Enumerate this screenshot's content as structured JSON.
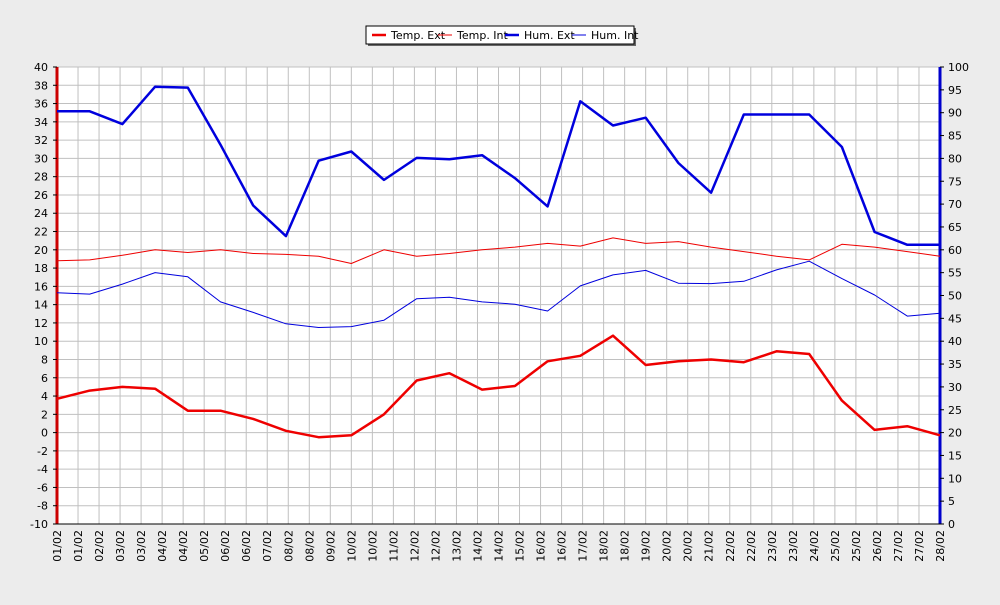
{
  "chart_data": {
    "type": "line",
    "title": "",
    "xlabel": "",
    "categories": [
      "01/02",
      "01/02",
      "02/02",
      "03/02",
      "03/02",
      "04/02",
      "04/02",
      "05/02",
      "06/02",
      "06/02",
      "07/02",
      "08/02",
      "08/02",
      "09/02",
      "10/02",
      "10/02",
      "11/02",
      "12/02",
      "12/02",
      "13/02",
      "14/02",
      "14/02",
      "15/02",
      "16/02",
      "16/02",
      "17/02",
      "18/02",
      "18/02",
      "19/02",
      "20/02",
      "20/02",
      "21/02",
      "22/02",
      "22/02",
      "23/02",
      "23/02",
      "24/02",
      "25/02",
      "25/02",
      "26/02",
      "27/02",
      "27/02",
      "28/02"
    ],
    "left_axis": {
      "min": -10,
      "max": 40,
      "step": 2,
      "color": "#cc0000"
    },
    "right_axis": {
      "min": 0,
      "max": 100,
      "step": 5,
      "color": "#0000cc"
    },
    "grid": true,
    "legend_position": "top-center",
    "series": [
      {
        "name": "Temp. Ext",
        "axis": "left",
        "color": "#ee0000",
        "width": 2.5,
        "x": [
          0,
          1,
          2,
          3,
          4,
          5,
          6,
          7,
          8,
          9,
          10,
          11,
          12,
          13,
          14,
          15,
          16,
          17,
          18,
          19,
          20,
          21,
          22,
          23,
          24,
          25,
          26,
          27
        ],
        "values": [
          3.7,
          4.6,
          5.0,
          4.8,
          2.4,
          2.4,
          1.5,
          0.2,
          -0.5,
          -0.3,
          2.0,
          5.7,
          6.5,
          4.7,
          5.1,
          7.8,
          8.4,
          10.6,
          7.4,
          7.8,
          8.0,
          7.7,
          8.9,
          8.6,
          3.5,
          0.3,
          0.7,
          -0.3
        ]
      },
      {
        "name": "Temp. Int",
        "axis": "left",
        "color": "#ee0000",
        "width": 1,
        "x": [
          0,
          1,
          2,
          3,
          4,
          5,
          6,
          7,
          8,
          9,
          10,
          11,
          12,
          13,
          14,
          15,
          16,
          17,
          18,
          19,
          20,
          21,
          22,
          23,
          24,
          25,
          26,
          27
        ],
        "values": [
          18.8,
          18.9,
          19.4,
          20.0,
          19.7,
          20.0,
          19.6,
          19.5,
          19.3,
          18.5,
          20.0,
          19.3,
          19.6,
          20.0,
          20.3,
          20.7,
          20.4,
          21.3,
          20.7,
          20.9,
          20.3,
          19.8,
          19.3,
          18.9,
          20.6,
          20.3,
          19.8,
          19.3
        ]
      },
      {
        "name": "Hum. Ext",
        "axis": "right",
        "color": "#0000dd",
        "width": 2.5,
        "x": [
          0,
          1,
          2,
          3,
          4,
          5,
          6,
          7,
          8,
          9,
          10,
          11,
          12,
          13,
          14,
          15,
          16,
          17,
          18,
          19,
          20,
          21,
          22,
          23,
          24,
          25,
          26,
          27
        ],
        "values": [
          90.3,
          90.3,
          87.5,
          95.7,
          95.5,
          83.0,
          69.7,
          63.0,
          79.5,
          81.5,
          75.3,
          80.1,
          79.8,
          80.7,
          75.7,
          69.5,
          92.5,
          87.2,
          88.9,
          79.0,
          72.5,
          89.6,
          89.6,
          89.6,
          82.5,
          63.9,
          61.1,
          61.1
        ]
      },
      {
        "name": "Hum. Int",
        "axis": "right",
        "color": "#0000dd",
        "width": 1,
        "x": [
          0,
          1,
          2,
          3,
          4,
          5,
          6,
          7,
          8,
          9,
          10,
          11,
          12,
          13,
          14,
          15,
          16,
          17,
          18,
          19,
          20,
          21,
          22,
          23,
          24,
          25,
          26,
          27
        ],
        "values": [
          50.6,
          50.3,
          52.5,
          55.0,
          54.1,
          48.6,
          46.3,
          43.8,
          43.0,
          43.2,
          44.6,
          49.3,
          49.6,
          48.6,
          48.1,
          46.6,
          52.1,
          54.5,
          55.5,
          52.7,
          52.6,
          53.1,
          55.6,
          57.5,
          53.7,
          50.1,
          45.5,
          46.1
        ]
      }
    ]
  }
}
